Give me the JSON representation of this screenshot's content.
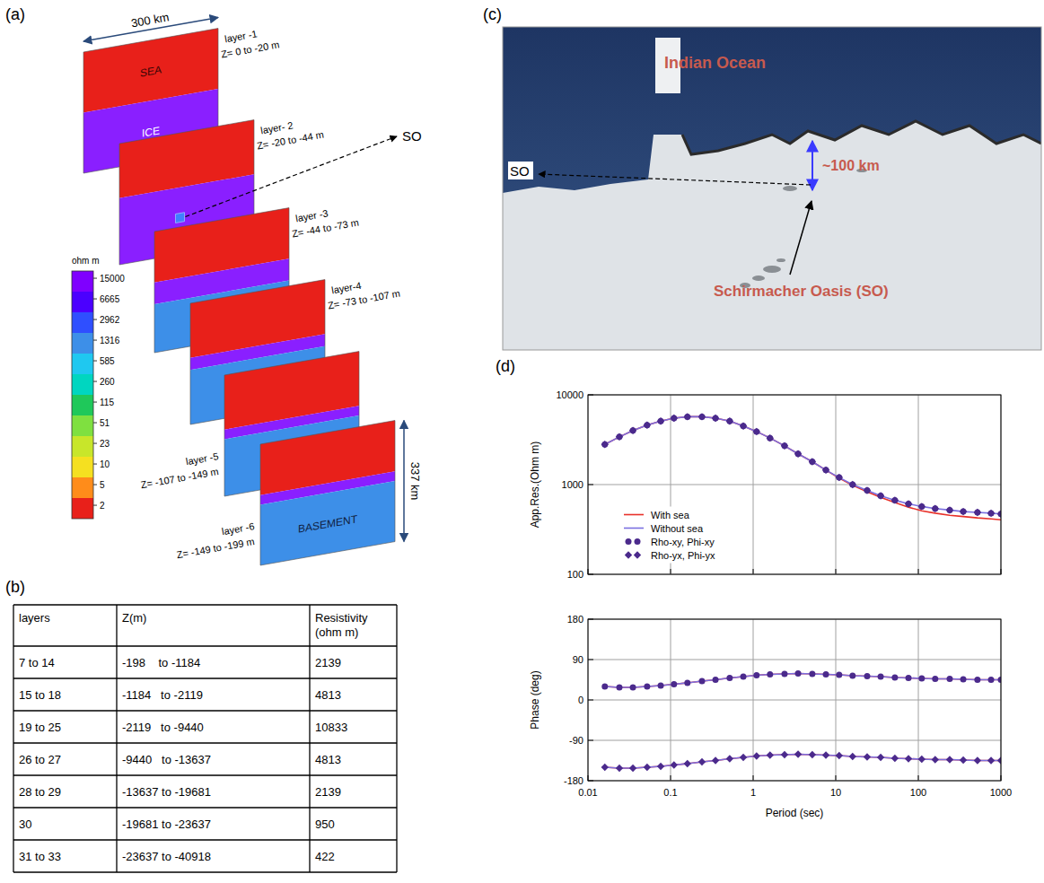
{
  "panel_labels": [
    "(a)",
    "(b)",
    "(c)",
    "(d)"
  ],
  "model": {
    "width_label": "300 km",
    "length_label": "337 km",
    "so_label": "SO",
    "materials": [
      {
        "label": "SEA",
        "color": "#e8201a"
      },
      {
        "label": "ICE",
        "color": "#8a1fff"
      },
      {
        "label": "BASEMENT",
        "color": "#3d8fe8"
      }
    ],
    "layers": [
      {
        "name": "layer -1",
        "z": "Z= 0 to -20 m"
      },
      {
        "name": "layer- 2",
        "z": "Z= -20 to -44 m"
      },
      {
        "name": "layer -3",
        "z": "Z= -44 to -73 m"
      },
      {
        "name": "layer-4",
        "z": "Z= -73 to -107 m"
      },
      {
        "name": "layer -5",
        "z": "Z= -107 to -149 m"
      },
      {
        "name": "layer -6",
        "z": "Z= -149 to -199 m"
      }
    ],
    "colorbar": {
      "title": "ohm m",
      "ticks": [
        15000,
        6665,
        2962,
        1316,
        585,
        260,
        115,
        51,
        23,
        10,
        5,
        2
      ],
      "colors": [
        "#7f00ff",
        "#4b00ff",
        "#2f4fff",
        "#3d8fe8",
        "#1fc8f0",
        "#00d6c0",
        "#1fc85a",
        "#7fe040",
        "#c8e62a",
        "#f5e020",
        "#ff8c1a",
        "#e8201a"
      ]
    }
  },
  "table": {
    "header": [
      "layers",
      "Z(m)",
      "Resistivity (ohm m)"
    ],
    "rows": [
      [
        "7 to 14",
        "-198    to -1184",
        2139
      ],
      [
        "15 to 18",
        "-1184   to -2119",
        4813
      ],
      [
        "19 to 25",
        "-2119   to -9440",
        10833
      ],
      [
        "26 to 27",
        "-9440   to -13637",
        4813
      ],
      [
        "28 to 29",
        "-13637 to -19681",
        2139
      ],
      [
        "30",
        "-19681 to -23637",
        950
      ],
      [
        "31 to 33",
        "-23637 to -40918",
        422
      ]
    ]
  },
  "map": {
    "sea_label": "Indian Ocean",
    "distance_label": "~100 km",
    "oasis_label": "Schirmacher Oasis (SO)",
    "so_label": "SO"
  },
  "chart_data": [
    {
      "type": "line",
      "ylabel": "App.Res.(Ohm m)",
      "x": [
        0.016,
        0.024,
        0.035,
        0.052,
        0.076,
        0.11,
        0.16,
        0.24,
        0.35,
        0.52,
        0.76,
        1.1,
        1.6,
        2.4,
        3.5,
        5.2,
        7.6,
        11,
        16,
        24,
        35,
        52,
        76,
        110,
        160,
        240,
        350,
        520,
        760,
        1000
      ],
      "xlim": [
        0.01,
        1000
      ],
      "xticks": [
        0.01,
        0.1,
        1,
        10,
        100,
        1000
      ],
      "ylim": [
        100,
        10000
      ],
      "yticks": [
        100,
        1000,
        10000
      ],
      "log": true,
      "grid": true,
      "legend": "lower left",
      "tick_labels": "y",
      "series": [
        {
          "name": "With sea",
          "type": "line",
          "color": "#e8312a",
          "values": [
            2800,
            3400,
            4000,
            4600,
            5100,
            5500,
            5700,
            5700,
            5500,
            5100,
            4500,
            3900,
            3300,
            2700,
            2200,
            1800,
            1450,
            1180,
            980,
            830,
            720,
            630,
            560,
            510,
            480,
            455,
            440,
            425,
            415,
            405
          ]
        },
        {
          "name": "Without sea",
          "type": "line",
          "color": "#7a6fe0",
          "values": [
            2800,
            3400,
            4000,
            4600,
            5100,
            5500,
            5700,
            5700,
            5500,
            5100,
            4500,
            3900,
            3300,
            2700,
            2200,
            1800,
            1450,
            1200,
            1000,
            860,
            750,
            670,
            610,
            570,
            540,
            520,
            500,
            490,
            480,
            470
          ]
        },
        {
          "name": "Rho-xy, Phi-xy",
          "type": "scatter",
          "marker": "circle",
          "color": "#4b2a8c",
          "values": [
            2800,
            3400,
            4000,
            4600,
            5100,
            5500,
            5700,
            5700,
            5500,
            5100,
            4500,
            3900,
            3300,
            2700,
            2200,
            1800,
            1450,
            1200,
            1000,
            860,
            750,
            670,
            610,
            570,
            540,
            520,
            500,
            490,
            480,
            470
          ]
        },
        {
          "name": "Rho-yx, Phi-yx",
          "type": "scatter",
          "marker": "diamond",
          "color": "#4b2a8c",
          "values": [
            2800,
            3400,
            4000,
            4600,
            5100,
            5500,
            5700,
            5700,
            5500,
            5100,
            4500,
            3900,
            3300,
            2700,
            2200,
            1800,
            1450,
            1200,
            1000,
            860,
            750,
            670,
            610,
            570,
            540,
            520,
            500,
            490,
            480,
            470
          ]
        }
      ]
    },
    {
      "type": "line",
      "xlabel": "Period (sec)",
      "ylabel": "Phase (deg)",
      "x": [
        0.016,
        0.024,
        0.035,
        0.052,
        0.076,
        0.11,
        0.16,
        0.24,
        0.35,
        0.52,
        0.76,
        1.1,
        1.6,
        2.4,
        3.5,
        5.2,
        7.6,
        11,
        16,
        24,
        35,
        52,
        76,
        110,
        160,
        240,
        350,
        520,
        760,
        1000
      ],
      "xlim": [
        0.01,
        1000
      ],
      "xticks": [
        0.01,
        0.1,
        1,
        10,
        100,
        1000
      ],
      "ylim": [
        -180,
        180
      ],
      "yticks": [
        -180,
        -90,
        0,
        90,
        180
      ],
      "log": "x",
      "grid": true,
      "series": [
        {
          "type": "line",
          "color": "#e8312a",
          "values": [
            30,
            28,
            28,
            30,
            32,
            35,
            38,
            42,
            45,
            49,
            52,
            55,
            57,
            58,
            59,
            58,
            57,
            56,
            54,
            53,
            52,
            50,
            49,
            48,
            47,
            47,
            46,
            45,
            45,
            45
          ]
        },
        {
          "type": "line",
          "color": "#7a6fe0",
          "values": [
            30,
            28,
            28,
            30,
            32,
            35,
            38,
            42,
            45,
            49,
            52,
            55,
            57,
            58,
            59,
            58,
            57,
            56,
            54,
            53,
            52,
            50,
            49,
            48,
            47,
            47,
            46,
            45,
            45,
            45
          ]
        },
        {
          "type": "scatter",
          "marker": "circle",
          "color": "#4b2a8c",
          "values": [
            30,
            28,
            28,
            30,
            32,
            35,
            38,
            42,
            45,
            49,
            52,
            55,
            57,
            58,
            59,
            58,
            57,
            56,
            54,
            53,
            52,
            50,
            49,
            48,
            47,
            47,
            46,
            45,
            45,
            45
          ]
        },
        {
          "type": "line",
          "color": "#e8312a",
          "values": [
            -150,
            -152,
            -152,
            -150,
            -148,
            -145,
            -142,
            -138,
            -135,
            -131,
            -128,
            -125,
            -123,
            -122,
            -121,
            -122,
            -123,
            -124,
            -126,
            -127,
            -128,
            -130,
            -131,
            -132,
            -133,
            -133,
            -134,
            -135,
            -135,
            -135
          ]
        },
        {
          "type": "line",
          "color": "#7a6fe0",
          "values": [
            -150,
            -152,
            -152,
            -150,
            -148,
            -145,
            -142,
            -138,
            -135,
            -131,
            -128,
            -125,
            -123,
            -122,
            -121,
            -122,
            -123,
            -124,
            -126,
            -127,
            -128,
            -130,
            -131,
            -132,
            -133,
            -133,
            -134,
            -135,
            -135,
            -135
          ]
        },
        {
          "type": "scatter",
          "marker": "diamond",
          "color": "#4b2a8c",
          "values": [
            -150,
            -152,
            -152,
            -150,
            -148,
            -145,
            -142,
            -138,
            -135,
            -131,
            -128,
            -125,
            -123,
            -122,
            -121,
            -122,
            -123,
            -124,
            -126,
            -127,
            -128,
            -130,
            -131,
            -132,
            -133,
            -133,
            -134,
            -135,
            -135,
            -135
          ]
        }
      ]
    }
  ]
}
